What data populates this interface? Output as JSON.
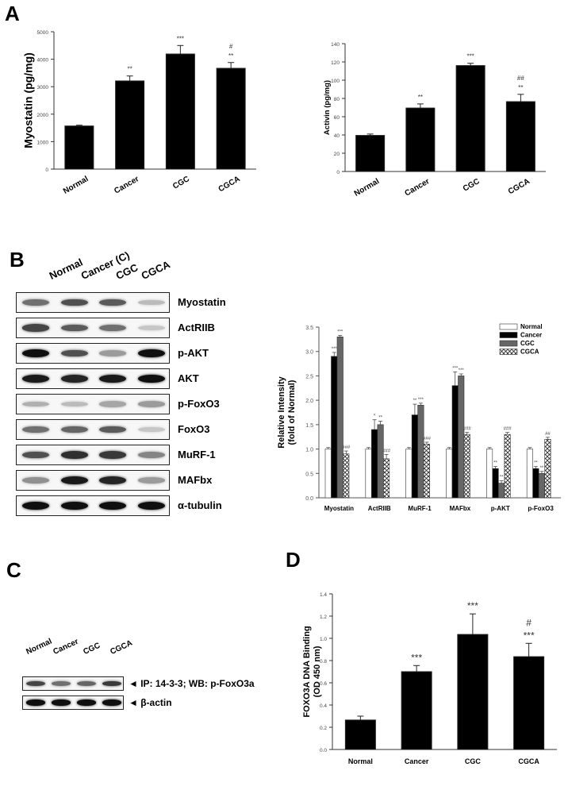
{
  "panels": {
    "A": {
      "letter": "A"
    },
    "B": {
      "letter": "B"
    },
    "C": {
      "letter": "C"
    },
    "D": {
      "letter": "D"
    }
  },
  "groups": [
    "Normal",
    "Cancer",
    "CGC",
    "CGCA"
  ],
  "blotB": {
    "lanes": [
      "Normal",
      "Cancer (C)",
      "CGC",
      "CGCA"
    ],
    "rows": [
      {
        "label": "Myostatin",
        "intensity": [
          0.55,
          0.7,
          0.65,
          0.2
        ]
      },
      {
        "label": "ActRIIB",
        "intensity": [
          0.75,
          0.65,
          0.55,
          0.15
        ]
      },
      {
        "label": "p-AKT",
        "intensity": [
          1.0,
          0.7,
          0.35,
          1.0
        ]
      },
      {
        "label": "AKT",
        "intensity": [
          0.95,
          0.9,
          0.95,
          1.0
        ]
      },
      {
        "label": "p-FoxO3",
        "intensity": [
          0.25,
          0.2,
          0.3,
          0.35
        ]
      },
      {
        "label": "FoxO3",
        "intensity": [
          0.55,
          0.6,
          0.65,
          0.15
        ]
      },
      {
        "label": "MuRF-1",
        "intensity": [
          0.7,
          0.85,
          0.8,
          0.45
        ]
      },
      {
        "label": "MAFbx",
        "intensity": [
          0.4,
          0.95,
          0.9,
          0.35
        ]
      },
      {
        "label": "α-tubulin",
        "intensity": [
          1.0,
          1.0,
          1.0,
          1.0
        ]
      }
    ]
  },
  "blotC": {
    "lanes": [
      "Normal",
      "Cancer",
      "CGC",
      "CGCA"
    ],
    "rows": [
      {
        "label": "IP: 14-3-3; WB: p-FoxO3a",
        "intensity": [
          0.75,
          0.55,
          0.6,
          0.8
        ]
      },
      {
        "label": "β-actin",
        "intensity": [
          1.0,
          1.0,
          1.0,
          1.0
        ]
      }
    ],
    "arrow": "◄"
  },
  "chart_data": [
    {
      "id": "A-left",
      "type": "bar",
      "title": "",
      "xlabel": "",
      "ylabel": "Myostatin (pg/mg)",
      "categories": [
        "Normal",
        "Cancer",
        "CGC",
        "CGCA"
      ],
      "values": [
        1570,
        3210,
        4190,
        3670
      ],
      "errors": [
        30,
        180,
        310,
        210
      ],
      "annotations": [
        "",
        "**",
        "***",
        "#\n**"
      ],
      "ylim": [
        0,
        5000
      ],
      "yticks": [
        0,
        1000,
        2000,
        3000,
        4000,
        5000
      ],
      "grid": false,
      "color": "#000000"
    },
    {
      "id": "A-right",
      "type": "bar",
      "title": "",
      "xlabel": "",
      "ylabel": "Activin (pg/mg)",
      "categories": [
        "Normal",
        "Cancer",
        "CGC",
        "CGCA"
      ],
      "values": [
        39.5,
        69.5,
        116,
        76.5
      ],
      "errors": [
        1.5,
        4.5,
        2.5,
        8
      ],
      "annotations": [
        "",
        "**",
        "***",
        "##\n**"
      ],
      "ylim": [
        0,
        140
      ],
      "yticks": [
        0,
        20,
        40,
        60,
        80,
        100,
        120,
        140
      ],
      "grid": false,
      "color": "#000000"
    },
    {
      "id": "B",
      "type": "bar",
      "title": "",
      "xlabel": "",
      "ylabel": "Relative Intensity\n(fold of Normal)",
      "categories": [
        "Myostatin",
        "ActRIIB",
        "MuRF-1",
        "MAFbx",
        "p-AKT",
        "p-FoxO3"
      ],
      "series": [
        {
          "name": "Normal",
          "fill": "#ffffff",
          "values": [
            1.0,
            1.0,
            1.0,
            1.0,
            1.0,
            1.0
          ],
          "errors": [
            0.03,
            0.03,
            0.03,
            0.03,
            0.03,
            0.03
          ],
          "annotations": [
            "",
            "",
            "",
            "",
            "",
            ""
          ]
        },
        {
          "name": "Cancer",
          "fill": "#000000",
          "values": [
            2.9,
            1.4,
            1.7,
            2.3,
            0.6,
            0.6
          ],
          "errors": [
            0.08,
            0.2,
            0.22,
            0.28,
            0.04,
            0.04
          ],
          "annotations": [
            "***",
            "*",
            "**",
            "***",
            "**",
            "**"
          ]
        },
        {
          "name": "CGC",
          "fill": "#666666",
          "values": [
            3.3,
            1.5,
            1.9,
            2.5,
            0.3,
            0.5
          ],
          "errors": [
            0.03,
            0.07,
            0.04,
            0.04,
            0.05,
            0.04
          ],
          "annotations": [
            "***",
            "**",
            "***",
            "***",
            "**",
            "**"
          ]
        },
        {
          "name": "CGCA",
          "fill": "crosshatch",
          "values": [
            0.9,
            0.8,
            1.1,
            1.3,
            1.3,
            1.2
          ],
          "errors": [
            0.06,
            0.09,
            0.04,
            0.04,
            0.04,
            0.04
          ],
          "annotations": [
            "###",
            "###",
            "###",
            "###",
            "###",
            "##"
          ]
        }
      ],
      "ylim": [
        0,
        3.5
      ],
      "yticks": [
        0.0,
        0.5,
        1.0,
        1.5,
        2.0,
        2.5,
        3.0,
        3.5
      ],
      "legend_position": "top-right",
      "grid": false
    },
    {
      "id": "D",
      "type": "bar",
      "title": "",
      "xlabel": "",
      "ylabel": "FOXO3A DNA Binding\n(OD 450 nm)",
      "categories": [
        "Normal",
        "Cancer",
        "CGC",
        "CGCA"
      ],
      "values": [
        0.265,
        0.7,
        1.035,
        0.835
      ],
      "errors": [
        0.035,
        0.055,
        0.185,
        0.12
      ],
      "annotations": [
        "",
        "***",
        "***",
        "#\n***"
      ],
      "ylim": [
        0,
        1.4
      ],
      "yticks": [
        0.0,
        0.2,
        0.4,
        0.6,
        0.8,
        1.0,
        1.2,
        1.4
      ],
      "grid": false,
      "color": "#000000"
    }
  ]
}
